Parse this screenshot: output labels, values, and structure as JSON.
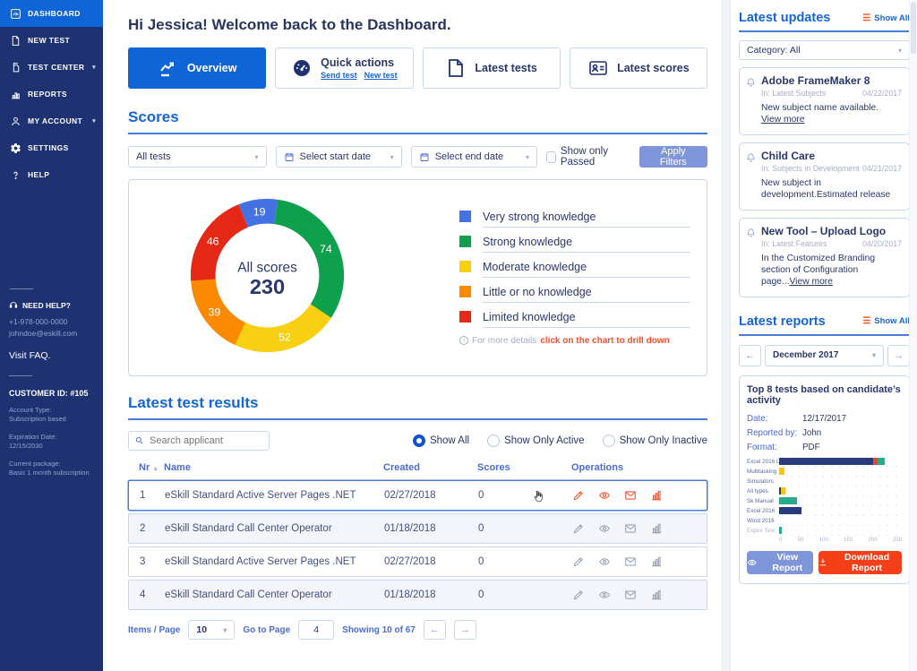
{
  "icons": {
    "chevron_down": "▾",
    "sort_asc": "▲",
    "hamburger": "☰",
    "arrow_left": "←",
    "arrow_right": "→"
  },
  "sidebar": {
    "nav": [
      {
        "label": "DASHBOARD",
        "icon": "dashboard-icon",
        "active": true,
        "caret": false
      },
      {
        "label": "NEW TEST",
        "icon": "new-test-icon",
        "active": false,
        "caret": false
      },
      {
        "label": "TEST CENTER",
        "icon": "test-center-icon",
        "active": false,
        "caret": true
      },
      {
        "label": "REPORTS",
        "icon": "reports-icon",
        "active": false,
        "caret": false
      },
      {
        "label": "MY ACCOUNT",
        "icon": "account-icon",
        "active": false,
        "caret": true
      },
      {
        "label": "SETTINGS",
        "icon": "settings-icon",
        "active": false,
        "caret": false
      },
      {
        "label": "HELP",
        "icon": "help-icon",
        "active": false,
        "caret": false
      }
    ],
    "help": {
      "title": "NEED HELP?",
      "phone": "+1-978-000-0000",
      "email": "johndoe@eskill.com",
      "faq": "Visit FAQ.",
      "customer_id": "CUSTOMER ID: #105",
      "account_type_label": "Account Type:",
      "account_type": "Subscription based",
      "expiration_label": "Expiration Date:",
      "expiration": "12/15/2030",
      "package_label": "Current package:",
      "package": "Basic 1 month subscription"
    }
  },
  "header": {
    "greeting": "Hi Jessica! Welcome back to the Dashboard."
  },
  "tabs": [
    {
      "label": "Overview",
      "icon": "overview-icon",
      "active": true
    },
    {
      "label": "Quick actions",
      "icon": "quick-actions-icon",
      "active": false,
      "links": [
        "Send test",
        "New test"
      ]
    },
    {
      "label": "Latest tests",
      "icon": "latest-tests-icon",
      "active": false
    },
    {
      "label": "Latest scores",
      "icon": "latest-scores-icon",
      "active": false
    }
  ],
  "scores": {
    "title": "Scores",
    "filters": {
      "test_select": "All tests",
      "start_date": "Select start date",
      "end_date": "Select end date",
      "checkbox": "Show only Passed",
      "apply": "Apply Filters"
    },
    "note_prefix": "For more details",
    "note_link": "click on the chart to drill down"
  },
  "chart_data": [
    {
      "type": "pie",
      "donut": true,
      "center_label": "All scores",
      "center_value": "230",
      "start_angle_deg": -22,
      "series": [
        {
          "label": "Very strong knowledge",
          "value": 19,
          "color": "#4472E2"
        },
        {
          "label": "Strong knowledge",
          "value": 74,
          "color": "#0FA04E"
        },
        {
          "label": "Moderate knowledge",
          "value": 52,
          "color": "#F8D011"
        },
        {
          "label": "Little or no knowledge",
          "value": 39,
          "color": "#FB8A00"
        },
        {
          "label": "Limited knowledge",
          "value": 46,
          "color": "#E62817"
        }
      ],
      "legend_position": "right"
    },
    {
      "type": "bar",
      "orientation": "horizontal",
      "title": "Top 8 tests based on candidate’s activity",
      "categories": [
        "Excel 2016 Lev...",
        "Multitasking",
        "Simulators",
        "All types",
        "Sk Manual",
        "Excel 2016",
        "Word 2016",
        "Expire Test"
      ],
      "series": [
        {
          "name": "segment-navy",
          "color": "#2A3B7D",
          "values": [
            192,
            0,
            0,
            3,
            0,
            46,
            0,
            0
          ]
        },
        {
          "name": "segment-orange",
          "color": "#E8452C",
          "values": [
            8,
            0,
            0,
            0,
            0,
            0,
            0,
            0
          ]
        },
        {
          "name": "segment-yellow",
          "color": "#F5C41B",
          "values": [
            0,
            11,
            0,
            10,
            0,
            0,
            0,
            0
          ]
        },
        {
          "name": "segment-teal",
          "color": "#2AAB8C",
          "values": [
            16,
            0,
            0,
            0,
            36,
            0,
            0,
            5
          ]
        }
      ],
      "xlim": [
        0,
        250
      ],
      "xticks": [
        0,
        50,
        100,
        150,
        200,
        250
      ],
      "grid": "dotted"
    }
  ],
  "results": {
    "title": "Latest test results",
    "search_placeholder": "Search applicant",
    "radios": [
      {
        "label": "Show All",
        "selected": true
      },
      {
        "label": "Show Only Active",
        "selected": false
      },
      {
        "label": "Show Only Inactive",
        "selected": false
      }
    ],
    "columns": [
      "Nr",
      "Name",
      "Created",
      "Scores",
      "Operations"
    ],
    "operations": [
      "edit-icon",
      "view-icon",
      "email-icon",
      "stats-icon"
    ],
    "rows": [
      {
        "nr": "1",
        "name": "eSkill Standard Active Server Pages .NET",
        "created": "02/27/2018",
        "scores": "0",
        "highlight": true,
        "cursor": true
      },
      {
        "nr": "2",
        "name": "eSkill Standard Call Center Operator",
        "created": "01/18/2018",
        "scores": "0",
        "highlight": false,
        "cursor": false
      },
      {
        "nr": "3",
        "name": "eSkill Standard Active Server Pages .NET",
        "created": "02/27/2018",
        "scores": "0",
        "highlight": false,
        "cursor": false
      },
      {
        "nr": "4",
        "name": "eSkill Standard Call Center Operator",
        "created": "01/18/2018",
        "scores": "0",
        "highlight": false,
        "cursor": false
      }
    ],
    "pagination": {
      "items_label": "Items / Page",
      "items_value": "10",
      "goto_label": "Go to Page",
      "goto_value": "4",
      "showing": "Showing 10 of 67"
    }
  },
  "updates": {
    "title": "Latest updates",
    "show_all": "Show All",
    "category": "Category: All",
    "cards": [
      {
        "title": "Adobe FrameMaker 8",
        "in": "In: Latest Subjects",
        "date": "04/22/2017",
        "body": "New subject name available.",
        "link": "View more",
        "link_block": true
      },
      {
        "title": "Child Care",
        "in": "In: Subjects in Development",
        "date": "04/21/2017",
        "body": "New subject in development.Estimated release",
        "link": "",
        "link_block": false
      },
      {
        "title": "New Tool – Upload Logo",
        "in": "In: Latest Features",
        "date": "04/20/2017",
        "body": "In the Customized Branding section of Configuration page...",
        "link": "View more",
        "link_block": false
      }
    ]
  },
  "reports": {
    "title": "Latest reports",
    "show_all": "Show All",
    "month": "December 2017",
    "card": {
      "title": "Top 8 tests based on candidate’s activity",
      "date_label": "Date:",
      "date": "12/17/2017",
      "reported_label": "Reported by:",
      "reported": "John",
      "format_label": "Format:",
      "format": "PDF",
      "view": "View Report",
      "download": "Download Report"
    }
  }
}
